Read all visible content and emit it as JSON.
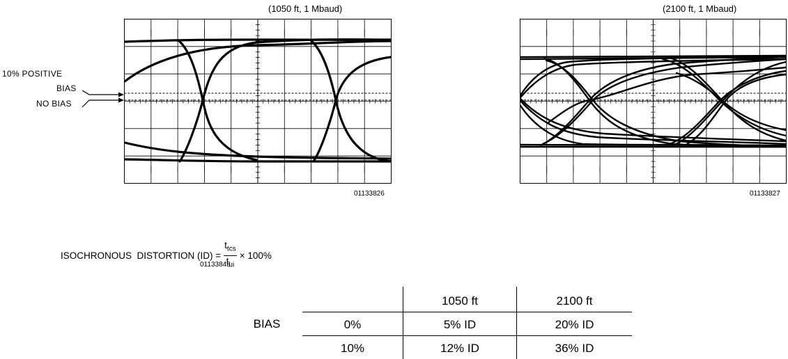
{
  "scope_left": {
    "title": "(1050 ft, 1 Mbaud)",
    "figure_id": "01133826"
  },
  "scope_right": {
    "title": "(2100 ft, 1 Mbaud)",
    "figure_id": "01133827"
  },
  "bias_labels": {
    "positive_line1": "10% POSITIVE",
    "positive_line2": "BIAS",
    "no_bias": "NO BIAS"
  },
  "formula": {
    "lhs": "ISOCHRONOUS  DISTORTION (ID) =",
    "numerator": "t",
    "numerator_sub": "tcs",
    "denominator": "t",
    "denominator_sub": "ui",
    "rhs": "× 100%",
    "figure_id": "01133848"
  },
  "table": {
    "col_headers": [
      "1050 ft",
      "2100 ft"
    ],
    "row_group_label": "BIAS",
    "rows": [
      {
        "bias": "0%",
        "c1": "5% ID",
        "c2": "20% ID"
      },
      {
        "bias": "10%",
        "c1": "12% ID",
        "c2": "36% ID"
      }
    ]
  }
}
